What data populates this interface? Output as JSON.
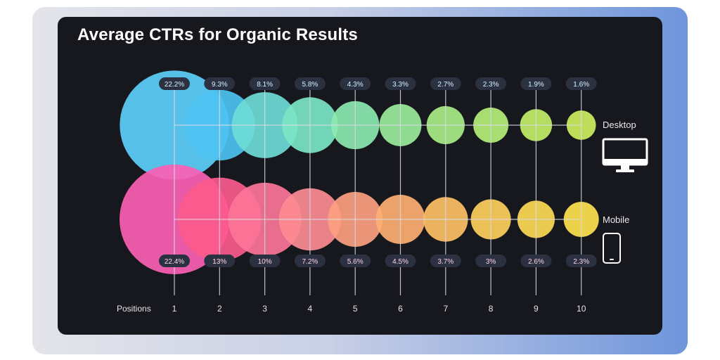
{
  "title": "Average CTRs for Organic Results",
  "chart_data": {
    "type": "bubble",
    "title": "Average CTRs for Organic Results",
    "xlabel": "Positions",
    "categories": [
      "1",
      "2",
      "3",
      "4",
      "5",
      "6",
      "7",
      "8",
      "9",
      "10"
    ],
    "series": [
      {
        "name": "Desktop",
        "values": [
          22.2,
          9.3,
          8.1,
          5.8,
          4.3,
          3.3,
          2.7,
          2.3,
          1.9,
          1.6
        ],
        "labels": [
          "22.2%",
          "9.3%",
          "8.1%",
          "5.8%",
          "4.3%",
          "3.3%",
          "2.7%",
          "2.3%",
          "1.9%",
          "1.6%"
        ],
        "colors": [
          "#5ccffb",
          "#4dc3f2",
          "#6fdcd6",
          "#7be6c4",
          "#8ce9b0",
          "#9cec9c",
          "#a8ee88",
          "#b5ef78",
          "#c2ef68",
          "#cdf05e"
        ]
      },
      {
        "name": "Mobile",
        "values": [
          22.4,
          13,
          10,
          7.2,
          5.6,
          4.5,
          3.7,
          3,
          2.6,
          2.3
        ],
        "labels": [
          "22.4%",
          "13%",
          "10%",
          "7.2%",
          "5.6%",
          "4.5%",
          "3.7%",
          "3%",
          "2.6%",
          "2.3%"
        ],
        "colors": [
          "#fb5fb4",
          "#fb5a8c",
          "#fc7598",
          "#fd8c92",
          "#fd9f80",
          "#feb072",
          "#fec066",
          "#fecf5c",
          "#fedb54",
          "#fee34e"
        ]
      }
    ],
    "legend": {
      "placement": "right"
    }
  },
  "legend": {
    "desktop": {
      "label": "Desktop",
      "icon": "desktop-monitor-icon"
    },
    "mobile": {
      "label": "Mobile",
      "icon": "mobile-phone-icon"
    }
  }
}
